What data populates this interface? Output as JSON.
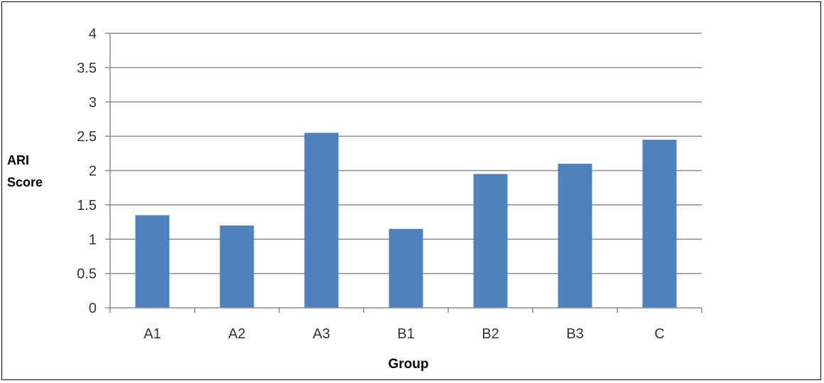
{
  "chart_data": {
    "type": "bar",
    "categories": [
      "A1",
      "A2",
      "A3",
      "B1",
      "B2",
      "B3",
      "C"
    ],
    "values": [
      1.35,
      1.2,
      2.55,
      1.15,
      1.95,
      2.1,
      2.45
    ],
    "xlabel": "Group",
    "ylabel_lines": [
      "ARI",
      "Score"
    ],
    "ylim": [
      0,
      4
    ],
    "yticks": [
      "0",
      "0.5",
      "1",
      "1.5",
      "2",
      "2.5",
      "3",
      "3.5",
      "4"
    ],
    "grid": true,
    "legend": "none",
    "bar_color": "#4f81bd"
  }
}
